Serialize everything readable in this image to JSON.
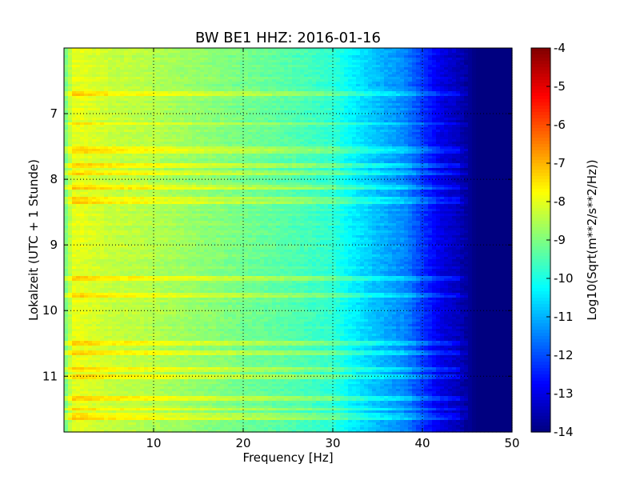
{
  "chart_data": {
    "type": "heatmap",
    "title": "BW BE1 HHZ: 2016-01-16",
    "xlabel": "Frequency [Hz]",
    "ylabel": "Lokalzeit (UTC + 1 Stunde)",
    "xlim": [
      0,
      50
    ],
    "ylim": [
      11.85,
      6.0
    ],
    "x_ticks": [
      "10",
      "20",
      "30",
      "40",
      "50"
    ],
    "x_tick_values": [
      10,
      20,
      30,
      40,
      50
    ],
    "y_ticks": [
      "7",
      "8",
      "9",
      "10",
      "11"
    ],
    "y_tick_values": [
      7,
      8,
      9,
      10,
      11
    ],
    "grid": true,
    "colorbar": {
      "label": "Log10(Sqrt(m**2/s**2/Hz))",
      "range": [
        -14,
        -4
      ],
      "ticks": [
        "-4",
        "-5",
        "-6",
        "-7",
        "-8",
        "-9",
        "-10",
        "-11",
        "-12",
        "-13",
        "-14"
      ],
      "tick_values": [
        -4,
        -5,
        -6,
        -7,
        -8,
        -9,
        -10,
        -11,
        -12,
        -13,
        -14
      ],
      "colormap": "jet"
    },
    "spectrum_profile": {
      "frequency_hz": [
        0,
        1,
        2,
        3,
        5,
        8,
        10,
        15,
        20,
        25,
        30,
        32,
        35,
        38,
        40,
        42,
        44,
        45,
        46,
        50
      ],
      "level_log10": [
        -9.3,
        -8.0,
        -8.0,
        -8.1,
        -8.3,
        -8.4,
        -8.5,
        -8.8,
        -9.1,
        -9.4,
        -9.8,
        -10.3,
        -10.9,
        -11.4,
        -12.2,
        -13.0,
        -13.4,
        -13.7,
        -14.0,
        -14.0
      ]
    },
    "bright_bands_hour": [
      6.7,
      7.15,
      7.53,
      7.57,
      7.78,
      7.9,
      8.12,
      8.3,
      8.35,
      9.5,
      9.78,
      10.5,
      10.65,
      10.9,
      11.0,
      11.33,
      11.5,
      11.58,
      11.62
    ]
  }
}
